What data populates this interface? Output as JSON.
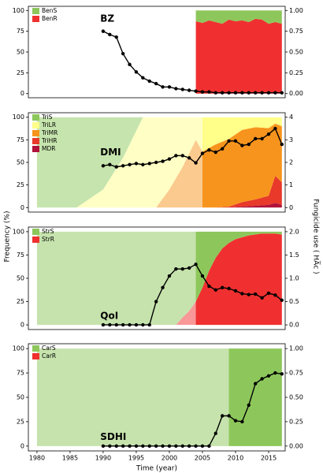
{
  "y_label": "Frequency (%)",
  "y2_label": "Fungicide use ( HA̅c )",
  "chart_data": [
    {
      "type": "area",
      "label": "BZ",
      "xlim": [
        1978.7,
        2017.5
      ],
      "ylim": [
        -5,
        105
      ],
      "yticks": [
        0,
        25,
        50,
        75,
        100
      ],
      "y2lim": [
        -0.05,
        1.05
      ],
      "y2ticks": [
        {
          "value": 0,
          "label": "0.00"
        },
        {
          "value": 0.25,
          "label": "0.25"
        },
        {
          "value": 0.5,
          "label": "0.50"
        },
        {
          "value": 0.75,
          "label": "0.75"
        },
        {
          "value": 1,
          "label": "1.00"
        }
      ],
      "observed_from": 2004,
      "x": [
        2004,
        2005,
        2006,
        2007,
        2008,
        2009,
        2010,
        2011,
        2012,
        2013,
        2014,
        2015,
        2016,
        2017
      ],
      "series": [
        {
          "name": "BenS",
          "color": "#8dc75b",
          "values": [
            13,
            15,
            12,
            14,
            16,
            11,
            13,
            12,
            14,
            10,
            11,
            16,
            14,
            16
          ]
        },
        {
          "name": "BenR",
          "color": "#f03030",
          "values": [
            87,
            85,
            88,
            86,
            84,
            89,
            87,
            88,
            86,
            90,
            89,
            84,
            86,
            84
          ]
        },
        {
          "axis": "y2",
          "color": "#000000",
          "x": [
            1990,
            1991,
            1992,
            1993,
            1994,
            1995,
            1996,
            1997,
            1998,
            1999,
            2000,
            2001,
            2002,
            2003,
            2004,
            2005,
            2006,
            2007,
            2008,
            2009,
            2010,
            2011,
            2012,
            2013,
            2014,
            2015,
            2016,
            2017
          ],
          "values": [
            0.75,
            0.71,
            0.68,
            0.48,
            0.35,
            0.26,
            0.19,
            0.15,
            0.12,
            0.08,
            0.08,
            0.06,
            0.05,
            0.04,
            0.03,
            0.02,
            0.02,
            0.01,
            0.01,
            0.01,
            0.01,
            0.01,
            0.01,
            0.01,
            0.01,
            0.01,
            0.01,
            0.01
          ]
        }
      ]
    },
    {
      "type": "area",
      "label": "DMI",
      "xlim": [
        1978.7,
        2017.5
      ],
      "ylim": [
        -5,
        105
      ],
      "yticks": [
        0,
        25,
        50,
        75,
        100
      ],
      "y2lim": [
        -0.2,
        4.2
      ],
      "y2ticks": [
        0,
        1,
        2,
        3,
        4
      ],
      "observed_from": 2005,
      "x": [
        1980,
        1986,
        1990,
        1993,
        1996,
        1998,
        2000,
        2002,
        2004,
        2005,
        2007,
        2009,
        2011,
        2013,
        2015,
        2016,
        2017
      ],
      "series": [
        {
          "name": "TriS",
          "color": "#8cc85a",
          "values": [
            100,
            100,
            80,
            45,
            0,
            0,
            0,
            0,
            0,
            0,
            0,
            0,
            0,
            0,
            0,
            0,
            0
          ]
        },
        {
          "name": "TriLR",
          "color": "#ffff8a",
          "values": [
            0,
            0,
            20,
            55,
            100,
            100,
            80,
            55,
            25,
            38,
            30,
            24,
            14,
            11,
            12,
            7,
            10
          ]
        },
        {
          "name": "TriMR",
          "color": "#f7941d",
          "values": [
            0,
            0,
            0,
            0,
            0,
            0,
            20,
            45,
            75,
            62,
            70,
            75,
            80,
            80,
            75,
            58,
            62
          ]
        },
        {
          "name": "TriHR",
          "color": "#e8392a",
          "values": [
            0,
            0,
            0,
            0,
            0,
            0,
            0,
            0,
            0,
            0,
            0,
            1,
            5,
            7,
            10,
            30,
            25
          ]
        },
        {
          "name": "MDR",
          "color": "#b0123a",
          "values": [
            0,
            0,
            0,
            0,
            0,
            0,
            0,
            0,
            0,
            0,
            0,
            0,
            1,
            2,
            3,
            5,
            3
          ]
        },
        {
          "axis": "y2",
          "color": "#000000",
          "x": [
            1990,
            1991,
            1992,
            1993,
            1994,
            1995,
            1996,
            1997,
            1998,
            1999,
            2000,
            2001,
            2002,
            2003,
            2004,
            2005,
            2006,
            2007,
            2008,
            2009,
            2010,
            2011,
            2012,
            2013,
            2014,
            2015,
            2016,
            2017
          ],
          "values": [
            1.85,
            1.9,
            1.8,
            1.85,
            1.9,
            1.95,
            1.9,
            1.95,
            2.0,
            2.05,
            2.15,
            2.3,
            2.3,
            2.2,
            1.98,
            2.4,
            2.55,
            2.45,
            2.6,
            2.95,
            2.95,
            2.75,
            2.8,
            3.05,
            3.05,
            3.25,
            3.5,
            2.8
          ]
        }
      ]
    },
    {
      "type": "area",
      "label": "QoI",
      "xlim": [
        1978.7,
        2017.5
      ],
      "ylim": [
        -5,
        105
      ],
      "yticks": [
        0,
        25,
        50,
        75,
        100
      ],
      "y2lim": [
        -0.1,
        2.1
      ],
      "y2ticks": [
        {
          "value": 0,
          "label": "0.0"
        },
        {
          "value": 0.5,
          "label": "0.5"
        },
        {
          "value": 1,
          "label": "1.0"
        },
        {
          "value": 1.5,
          "label": "1.5"
        },
        {
          "value": 2,
          "label": "2.0"
        }
      ],
      "observed_from": 2004,
      "x": [
        1980,
        2001,
        2002,
        2003,
        2004,
        2005,
        2006,
        2007,
        2008,
        2009,
        2010,
        2012,
        2014,
        2016,
        2017
      ],
      "series": [
        {
          "name": "StrS",
          "color": "#8dc75b",
          "values": [
            100,
            100,
            92,
            85,
            75,
            60,
            42,
            28,
            18,
            12,
            8,
            4,
            2,
            2,
            3
          ]
        },
        {
          "name": "StrR",
          "color": "#f03030",
          "values": [
            0,
            0,
            8,
            15,
            25,
            40,
            58,
            72,
            82,
            88,
            92,
            96,
            98,
            98,
            97
          ]
        },
        {
          "axis": "y2",
          "color": "#000000",
          "x": [
            1990,
            1991,
            1992,
            1993,
            1994,
            1995,
            1996,
            1997,
            1998,
            1999,
            2000,
            2001,
            2002,
            2003,
            2004,
            2005,
            2006,
            2007,
            2008,
            2009,
            2010,
            2011,
            2012,
            2013,
            2014,
            2015,
            2016,
            2017
          ],
          "values": [
            0,
            0,
            0,
            0,
            0,
            0,
            0,
            0,
            0.5,
            0.8,
            1.05,
            1.2,
            1.2,
            1.22,
            1.3,
            1.05,
            0.83,
            0.75,
            0.8,
            0.78,
            0.73,
            0.67,
            0.65,
            0.66,
            0.58,
            0.68,
            0.64,
            0.53
          ]
        }
      ]
    },
    {
      "type": "area",
      "label": "SDHI",
      "xlim": [
        1978.7,
        2017.5
      ],
      "ylim": [
        -5,
        105
      ],
      "yticks": [
        0,
        25,
        50,
        75,
        100
      ],
      "y2lim": [
        -0.05,
        1.05
      ],
      "y2ticks": [
        {
          "value": 0,
          "label": "0.00"
        },
        {
          "value": 0.25,
          "label": "0.25"
        },
        {
          "value": 0.5,
          "label": "0.50"
        },
        {
          "value": 0.75,
          "label": "0.75"
        },
        {
          "value": 1,
          "label": "1.00"
        }
      ],
      "observed_from": 2009,
      "x_label": "Time (year)",
      "xticks": [
        1980,
        1985,
        1990,
        1995,
        2000,
        2005,
        2010,
        2015
      ],
      "x": [
        1980,
        2009,
        2017
      ],
      "series": [
        {
          "name": "CarS",
          "color": "#8dc75b",
          "values": [
            100,
            100,
            100
          ]
        },
        {
          "name": "CarR",
          "color": "#f03030",
          "values": [
            0,
            0,
            0
          ]
        },
        {
          "axis": "y2",
          "color": "#000000",
          "x": [
            1990,
            1991,
            1992,
            1993,
            1994,
            1995,
            1996,
            1997,
            1998,
            1999,
            2000,
            2001,
            2002,
            2003,
            2004,
            2005,
            2006,
            2007,
            2008,
            2009,
            2010,
            2011,
            2012,
            2013,
            2014,
            2015,
            2016,
            2017
          ],
          "values": [
            0,
            0,
            0,
            0,
            0,
            0,
            0,
            0,
            0,
            0,
            0,
            0,
            0,
            0,
            0,
            0,
            0,
            0.13,
            0.31,
            0.31,
            0.26,
            0.25,
            0.42,
            0.64,
            0.69,
            0.72,
            0.75,
            0.74
          ]
        }
      ]
    }
  ]
}
